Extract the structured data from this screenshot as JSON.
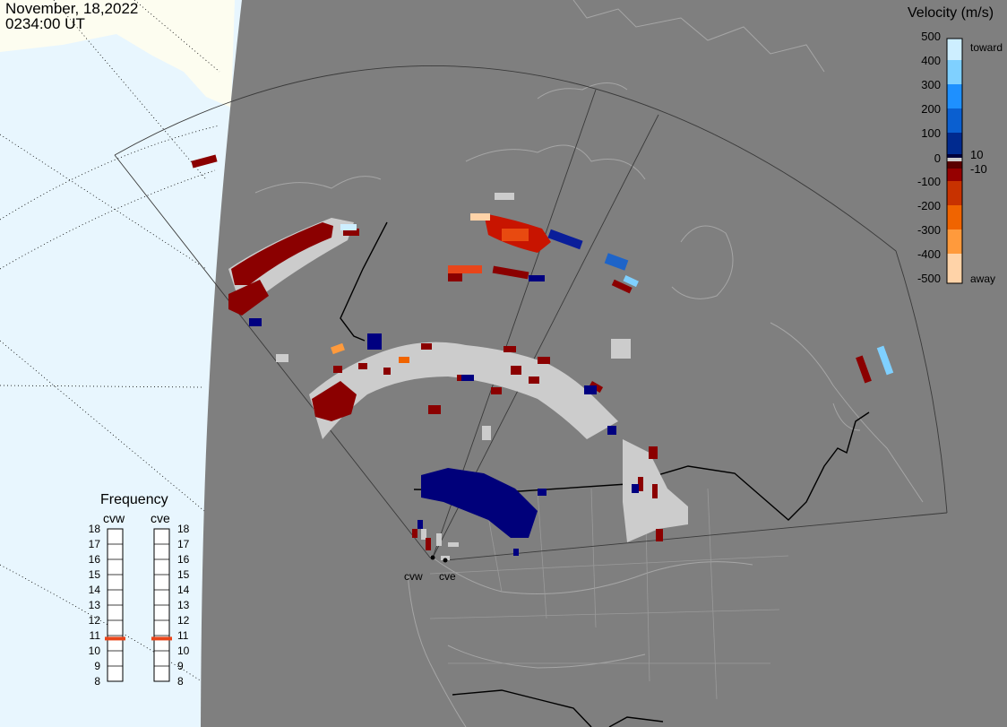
{
  "header": {
    "date": "November, 18,2022",
    "time": "0234:00 UT"
  },
  "velocity_scale": {
    "title": "Velocity (m/s)",
    "tick_labels": [
      "500",
      "400",
      "300",
      "200",
      "100",
      "10",
      "0",
      "-10",
      "-100",
      "-200",
      "-300",
      "-400",
      "-500"
    ],
    "toward_label": "toward",
    "away_label": "away",
    "colors": [
      "#cdeeff",
      "#7fd0ff",
      "#1e90ff",
      "#0a5fd0",
      "#002a8f",
      "#00003c",
      "#ffffff",
      "#5a0000",
      "#960000",
      "#c83200",
      "#f06400",
      "#ff9a3c",
      "#ffd3a8"
    ],
    "ground_scatter_color": "#cccccc"
  },
  "frequency": {
    "title": "Frequency",
    "channels": [
      {
        "name": "cvw",
        "value_mhz": 10.8
      },
      {
        "name": "cve",
        "value_mhz": 10.8
      }
    ],
    "tick_labels": [
      "18",
      "17",
      "16",
      "15",
      "14",
      "13",
      "12",
      "11",
      "10",
      "9",
      "8"
    ],
    "marker_color": "#e8451a"
  },
  "radar_sites": [
    {
      "name": "cvw"
    },
    {
      "name": "cve"
    }
  ],
  "map_colors": {
    "night": "#7f7f7f",
    "day_ocean": "#e8f6fe",
    "day_land": "#fdfdf0",
    "land_outline": "#a6a6a6",
    "border": "#000000"
  }
}
